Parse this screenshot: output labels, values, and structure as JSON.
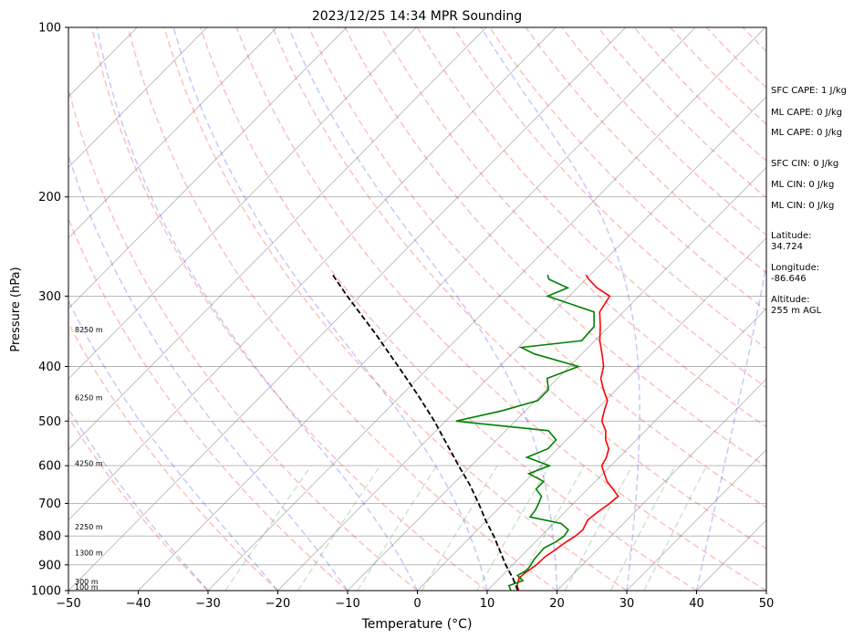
{
  "chart_data": {
    "type": "line",
    "title": "2023/12/25 14:34 MPR Sounding",
    "xlabel": "Temperature (°C)",
    "ylabel": "Pressure (hPa)",
    "xlim": [
      -50,
      50
    ],
    "ylim": [
      1000,
      100
    ],
    "y_scale": "log",
    "x_ticks": [
      "−50",
      "−40",
      "−30",
      "−20",
      "−10",
      "0",
      "10",
      "20",
      "30",
      "40",
      "50"
    ],
    "y_ticks": [
      "100",
      "200",
      "300",
      "400",
      "500",
      "600",
      "700",
      "800",
      "900",
      "1000"
    ],
    "grid": true,
    "series": [
      {
        "role": "temperature",
        "color": "#ff0000",
        "points": [
          [
            1000,
            14.5
          ],
          [
            980,
            13.6
          ],
          [
            950,
            12.8
          ],
          [
            930,
            12.9
          ],
          [
            900,
            13.4
          ],
          [
            870,
            13.5
          ],
          [
            850,
            13.9
          ],
          [
            820,
            14.4
          ],
          [
            800,
            14.9
          ],
          [
            780,
            15.1
          ],
          [
            750,
            14.4
          ],
          [
            730,
            14.6
          ],
          [
            700,
            15.2
          ],
          [
            680,
            15.4
          ],
          [
            660,
            13.6
          ],
          [
            640,
            11.7
          ],
          [
            620,
            10.2
          ],
          [
            600,
            8.7
          ],
          [
            580,
            8.2
          ],
          [
            560,
            7.3
          ],
          [
            540,
            5.6
          ],
          [
            520,
            4.3
          ],
          [
            500,
            2.4
          ],
          [
            480,
            1.3
          ],
          [
            460,
            0.3
          ],
          [
            440,
            -1.8
          ],
          [
            420,
            -3.8
          ],
          [
            400,
            -5.1
          ],
          [
            380,
            -7.1
          ],
          [
            360,
            -9.3
          ],
          [
            340,
            -11.2
          ],
          [
            320,
            -13.4
          ],
          [
            300,
            -14.2
          ],
          [
            290,
            -17.2
          ],
          [
            280,
            -19.6
          ],
          [
            275,
            -20.6
          ]
        ]
      },
      {
        "role": "dewpoint",
        "color": "#008000",
        "points": [
          [
            1000,
            13.4
          ],
          [
            980,
            12.4
          ],
          [
            960,
            13.7
          ],
          [
            940,
            12.2
          ],
          [
            920,
            12.8
          ],
          [
            900,
            12.6
          ],
          [
            880,
            12.3
          ],
          [
            860,
            12.2
          ],
          [
            840,
            12.1
          ],
          [
            820,
            12.9
          ],
          [
            800,
            13.3
          ],
          [
            780,
            13.0
          ],
          [
            760,
            11.1
          ],
          [
            740,
            5.7
          ],
          [
            720,
            5.5
          ],
          [
            700,
            5.0
          ],
          [
            680,
            4.4
          ],
          [
            660,
            2.6
          ],
          [
            640,
            2.6
          ],
          [
            620,
            -0.6
          ],
          [
            600,
            1.2
          ],
          [
            580,
            -3.2
          ],
          [
            560,
            -1.4
          ],
          [
            540,
            -1.5
          ],
          [
            520,
            -3.9
          ],
          [
            500,
            -18.5
          ],
          [
            480,
            -13.5
          ],
          [
            460,
            -9.7
          ],
          [
            440,
            -9.7
          ],
          [
            420,
            -11.5
          ],
          [
            400,
            -8.7
          ],
          [
            380,
            -16.8
          ],
          [
            370,
            -19.6
          ],
          [
            360,
            -11.9
          ],
          [
            340,
            -12.1
          ],
          [
            320,
            -14.2
          ],
          [
            300,
            -23.1
          ],
          [
            290,
            -21.4
          ],
          [
            280,
            -25.3
          ],
          [
            275,
            -26.1
          ]
        ]
      },
      {
        "role": "parcel",
        "color": "#000000",
        "dashed": true,
        "points": [
          [
            1000,
            14.4
          ],
          [
            950,
            11.9
          ],
          [
            900,
            9.0
          ],
          [
            850,
            6.2
          ],
          [
            800,
            3.2
          ],
          [
            750,
            -0.2
          ],
          [
            700,
            -3.6
          ],
          [
            650,
            -7.4
          ],
          [
            600,
            -11.8
          ],
          [
            550,
            -16.5
          ],
          [
            500,
            -21.6
          ],
          [
            450,
            -27.6
          ],
          [
            400,
            -34.5
          ],
          [
            350,
            -42.4
          ],
          [
            300,
            -51.8
          ],
          [
            275,
            -56.9
          ]
        ]
      }
    ],
    "dry_adiabats_theta_c": [
      -30,
      -20,
      -10,
      0,
      10,
      20,
      30,
      40,
      50,
      60,
      70,
      80,
      90,
      100,
      110,
      120,
      130,
      140,
      150,
      160,
      170,
      180,
      190,
      200,
      210,
      220
    ],
    "moist_adiabats_c": [
      -30,
      -20,
      -10,
      0,
      10,
      20,
      30,
      40
    ],
    "mixing_ratio_lines_gkg": [
      0.4,
      1,
      2,
      4,
      7,
      10,
      16,
      24,
      32
    ],
    "height_labels": [
      {
        "p": 1000,
        "text": "100 m"
      },
      {
        "p": 978,
        "text": "300 m"
      },
      {
        "p": 870,
        "text": "1300 m"
      },
      {
        "p": 782,
        "text": "2250 m"
      },
      {
        "p": 603,
        "text": "4250 m"
      },
      {
        "p": 461,
        "text": "6250 m"
      },
      {
        "p": 349,
        "text": "8250 m"
      }
    ],
    "colors": {
      "temperature": "#ff0000",
      "dewpoint": "#008000",
      "parcel": "#000000",
      "dry_adiabat": "#ff0000",
      "moist_adiabat": "#0000ff",
      "mixing_ratio": "#008000",
      "isotherm": "#808080"
    }
  },
  "indices": [
    {
      "text": "SFC CAPE: 1 J/kg"
    },
    {
      "text": "ML CAPE: 0 J/kg"
    },
    {
      "text": "ML CAPE: 0 J/kg"
    },
    {
      "text": "SFC CIN: 0 J/kg"
    },
    {
      "text": "ML CIN: 0 J/kg"
    },
    {
      "text": "ML CIN: 0 J/kg"
    }
  ],
  "location": {
    "latitude_label": "Latitude:",
    "latitude_value": "34.724",
    "longitude_label": "Longitude:",
    "longitude_value": "-86.646",
    "altitude_label": "Altitude:",
    "altitude_value": "255 m AGL"
  }
}
